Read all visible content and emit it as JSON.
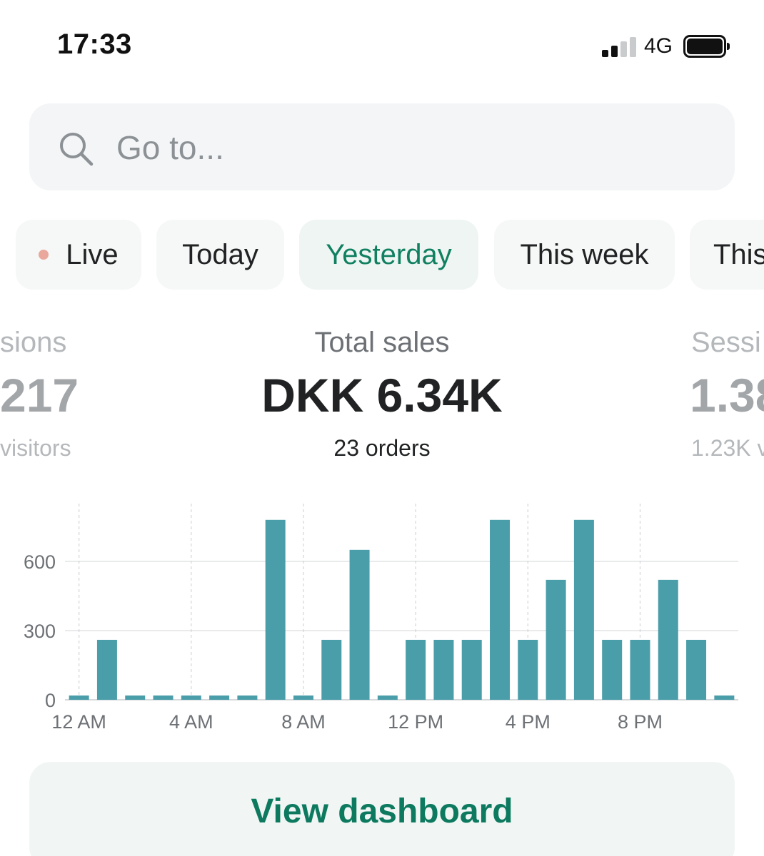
{
  "status_bar": {
    "time": "17:33",
    "network": "4G",
    "signal_bars_active": 2,
    "signal_bars_total": 4,
    "battery_level": 1.0
  },
  "search": {
    "placeholder": "Go to..."
  },
  "tabs": [
    {
      "label": "Live",
      "has_dot": true
    },
    {
      "label": "Today"
    },
    {
      "label": "Yesterday",
      "active": true
    },
    {
      "label": "This week"
    },
    {
      "label": "This"
    }
  ],
  "metrics": {
    "left": {
      "title": "sions",
      "value": "217",
      "sub": "visitors"
    },
    "center": {
      "title": "Total sales",
      "value": "DKK 6.34K",
      "sub": "23 orders"
    },
    "right": {
      "title": "Sessi",
      "value": "1.38",
      "sub": "1.23K v"
    }
  },
  "colors": {
    "accent": "#108060",
    "bar": "#4a9ea9",
    "live_dot": "#e9a89b",
    "text": "#202223",
    "muted": "#6d7175"
  },
  "chart_data": {
    "type": "bar",
    "categories": [
      "12 AM",
      "1 AM",
      "2 AM",
      "3 AM",
      "4 AM",
      "5 AM",
      "6 AM",
      "7 AM",
      "8 AM",
      "9 AM",
      "10 AM",
      "11 AM",
      "12 PM",
      "1 PM",
      "2 PM",
      "3 PM",
      "4 PM",
      "5 PM",
      "6 PM",
      "7 PM",
      "8 PM",
      "9 PM",
      "10 PM",
      "11 PM"
    ],
    "values": [
      0,
      260,
      0,
      0,
      0,
      0,
      0,
      780,
      0,
      260,
      650,
      0,
      260,
      260,
      260,
      780,
      260,
      520,
      780,
      260,
      260,
      520,
      260,
      0
    ],
    "x_tick_labels": [
      "12 AM",
      "4 AM",
      "8 AM",
      "12 PM",
      "4 PM",
      "8 PM"
    ],
    "y_ticks": [
      0,
      300,
      600
    ],
    "ylim": [
      0,
      850
    ],
    "grid": true,
    "xlabel": "",
    "ylabel": ""
  },
  "button": {
    "label": "View dashboard"
  }
}
